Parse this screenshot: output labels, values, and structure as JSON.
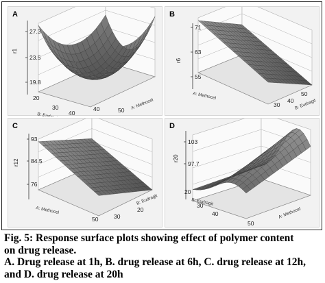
{
  "chart_data": [
    {
      "type": "surface3d",
      "panel": "A",
      "zlabel": "r1",
      "zticks": [
        "27.3",
        "23.5",
        "19.8"
      ],
      "ylabel": "B: Eudragit",
      "yticks": [
        "20",
        "30",
        "40"
      ],
      "xlabel": "A: Methocel",
      "xticks": [
        "40",
        "50"
      ],
      "shape": "bowl"
    },
    {
      "type": "surface3d",
      "panel": "B",
      "zlabel": "r6",
      "zticks": [
        "71",
        "63",
        "55"
      ],
      "ylabel": "A: Methocel",
      "yticks": [],
      "xlabel": "B: Eudragit",
      "xticks": [
        "30",
        "40",
        "50"
      ],
      "shape": "plane-descending"
    },
    {
      "type": "surface3d",
      "panel": "C",
      "zlabel": "r12",
      "zticks": [
        "93",
        "84.5",
        "76"
      ],
      "ylabel": "A: Methocel",
      "yticks": [],
      "xlabel": "B: Eudragit",
      "xticks": [
        "50",
        "30",
        "20"
      ],
      "shape": "plane-descending"
    },
    {
      "type": "surface3d",
      "panel": "D",
      "zlabel": "r20",
      "zticks": [
        "103",
        "97.7"
      ],
      "ylabel": "B: Eudragit",
      "yticks": [
        "20",
        "30",
        "40"
      ],
      "xlabel": "A: Methocel",
      "xticks": [
        "50"
      ],
      "shape": "ridge"
    }
  ],
  "caption": {
    "line1": "Fig. 5: Response surface plots showing effect of polymer content",
    "line2": "on drug release.",
    "line3": "A. Drug release at 1h, B. drug release at 6h, C. drug release at 12h,",
    "line4": "and D. drug release at 20h"
  },
  "colors": {
    "surface": "#6e6e6e",
    "grid": "#b0b0b0",
    "background": "#f2f2f2",
    "mesh": "#3a3a3a"
  }
}
